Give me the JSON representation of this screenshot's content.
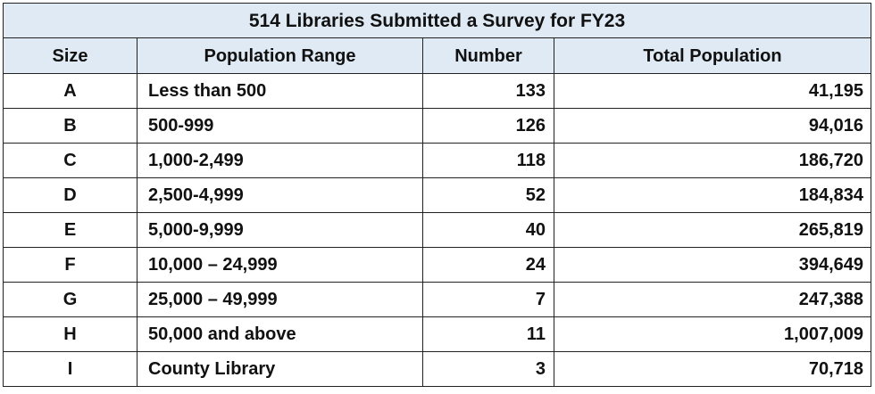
{
  "table": {
    "title": "514 Libraries Submitted a Survey for FY23",
    "headers": [
      "Size",
      "Population Range",
      "Number",
      "Total Population"
    ],
    "rows": [
      [
        "A",
        "Less than 500",
        "133",
        "41,195"
      ],
      [
        "B",
        "500-999",
        "126",
        "94,016"
      ],
      [
        "C",
        "1,000-2,499",
        "118",
        "186,720"
      ],
      [
        "D",
        "2,500-4,999",
        "52",
        "184,834"
      ],
      [
        "E",
        "5,000-9,999",
        "40",
        "265,819"
      ],
      [
        "F",
        "10,000 – 24,999",
        "24",
        "394,649"
      ],
      [
        "G",
        "25,000 – 49,999",
        "7",
        "247,388"
      ],
      [
        "H",
        "50,000 and above",
        "11",
        "1,007,009"
      ],
      [
        "I",
        "County Library",
        "3",
        "70,718"
      ]
    ],
    "header_bg": "#dfeaf4",
    "border_color": "#222222"
  }
}
